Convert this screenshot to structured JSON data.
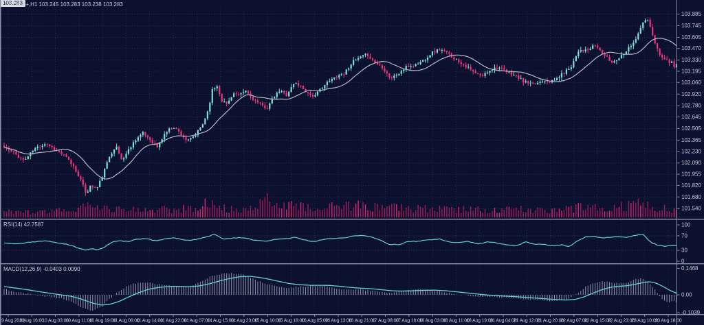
{
  "window": {
    "title": "USDX+,H1 103.245 103.283 103.238 103.283"
  },
  "icons": {
    "symbol_marker": "▼"
  },
  "colors": {
    "background": "#0D1130",
    "grid": "#272C50",
    "grid_level": "#343A63",
    "bull": "#7DE2D8",
    "bear": "#F2357B",
    "volume": "#9C1C58",
    "volume_bright": "#DE2570",
    "ma_line": "#B7BAC7",
    "indicator_line": "#5FD4D4",
    "histogram": "#B9BDCC",
    "axis_text": "#C6CAD8",
    "separator": "#8D93A9",
    "price_tag_bg": "#DCE0EA",
    "price_tag_text": "#10142E"
  },
  "panels": {
    "rsi": {
      "label": "RSI(14) 42.7587",
      "scale_labels": [
        "100",
        "70",
        "30",
        "0"
      ]
    },
    "macd": {
      "label": "MACD(12,26,9) -0.0403 0.0090",
      "scale_labels": [
        "0.1468",
        "0.00",
        "-0.1039"
      ]
    }
  },
  "price_axis": {
    "ticks": [
      "103.885",
      "103.745",
      "103.605",
      "103.470",
      "103.330",
      "103.195",
      "103.060",
      "102.920",
      "102.780",
      "102.645",
      "102.505",
      "102.365",
      "102.230",
      "102.090",
      "101.955",
      "101.820",
      "101.680",
      "101.540"
    ],
    "current_price": "103.283"
  },
  "time_axis": {
    "labels": [
      "9 Aug 2023",
      "9 Aug 16:00",
      "10 Aug 03:00",
      "10 Aug 11:00",
      "10 Aug 19:00",
      "11 Aug 06:00",
      "11 Aug 14:00",
      "11 Aug 22:00",
      "14 Aug 07:00",
      "14 Aug 15:00",
      "14 Aug 23:00",
      "15 Aug 10:00",
      "15 Aug 18:00",
      "16 Aug 05:00",
      "16 Aug 13:00",
      "16 Aug 21:00",
      "17 Aug 08:00",
      "17 Aug 16:00",
      "18 Aug 03:00",
      "18 Aug 11:00",
      "18 Aug 19:00",
      "21 Aug 04:00",
      "21 Aug 12:00",
      "21 Aug 20:00",
      "22 Aug 07:00",
      "22 Aug 15:00",
      "22 Aug 23:00",
      "23 Aug 10:00",
      "23 Aug 18:00"
    ]
  },
  "chart_data": {
    "type": "candlestick",
    "symbol": "USDX+",
    "timeframe": "H1",
    "title": "USDX+,H1",
    "last": {
      "open": 103.245,
      "high": 103.283,
      "low": 103.238,
      "close": 103.283
    },
    "ylim": [
      101.54,
      103.885
    ],
    "ma_period": 16,
    "candles_count": 282,
    "render_seed": 11,
    "price_path": [
      [
        0.0,
        102.28
      ],
      [
        0.012,
        102.22
      ],
      [
        0.03,
        102.12
      ],
      [
        0.045,
        102.26
      ],
      [
        0.062,
        102.33
      ],
      [
        0.078,
        102.24
      ],
      [
        0.092,
        102.16
      ],
      [
        0.103,
        102.05
      ],
      [
        0.112,
        101.92
      ],
      [
        0.122,
        101.72
      ],
      [
        0.129,
        101.82
      ],
      [
        0.138,
        101.78
      ],
      [
        0.147,
        101.95
      ],
      [
        0.157,
        102.18
      ],
      [
        0.166,
        102.3
      ],
      [
        0.175,
        102.12
      ],
      [
        0.186,
        102.26
      ],
      [
        0.196,
        102.38
      ],
      [
        0.207,
        102.45
      ],
      [
        0.216,
        102.38
      ],
      [
        0.228,
        102.28
      ],
      [
        0.24,
        102.46
      ],
      [
        0.252,
        102.53
      ],
      [
        0.263,
        102.44
      ],
      [
        0.273,
        102.35
      ],
      [
        0.284,
        102.42
      ],
      [
        0.295,
        102.55
      ],
      [
        0.303,
        102.72
      ],
      [
        0.31,
        102.98
      ],
      [
        0.317,
        103.02
      ],
      [
        0.324,
        102.84
      ],
      [
        0.332,
        102.8
      ],
      [
        0.34,
        102.93
      ],
      [
        0.35,
        102.9
      ],
      [
        0.359,
        102.96
      ],
      [
        0.369,
        102.87
      ],
      [
        0.379,
        102.8
      ],
      [
        0.391,
        102.75
      ],
      [
        0.4,
        102.87
      ],
      [
        0.41,
        102.96
      ],
      [
        0.42,
        102.91
      ],
      [
        0.432,
        103.06
      ],
      [
        0.442,
        103.01
      ],
      [
        0.452,
        102.93
      ],
      [
        0.462,
        102.89
      ],
      [
        0.472,
        103.0
      ],
      [
        0.483,
        103.07
      ],
      [
        0.495,
        103.14
      ],
      [
        0.506,
        103.17
      ],
      [
        0.517,
        103.3
      ],
      [
        0.53,
        103.36
      ],
      [
        0.54,
        103.4
      ],
      [
        0.551,
        103.3
      ],
      [
        0.562,
        103.25
      ],
      [
        0.575,
        103.11
      ],
      [
        0.587,
        103.17
      ],
      [
        0.599,
        103.25
      ],
      [
        0.611,
        103.27
      ],
      [
        0.624,
        103.33
      ],
      [
        0.636,
        103.42
      ],
      [
        0.648,
        103.46
      ],
      [
        0.66,
        103.41
      ],
      [
        0.673,
        103.33
      ],
      [
        0.685,
        103.27
      ],
      [
        0.697,
        103.19
      ],
      [
        0.71,
        103.13
      ],
      [
        0.722,
        103.21
      ],
      [
        0.734,
        103.25
      ],
      [
        0.746,
        103.19
      ],
      [
        0.759,
        103.15
      ],
      [
        0.773,
        103.07
      ],
      [
        0.787,
        103.03
      ],
      [
        0.802,
        103.09
      ],
      [
        0.816,
        103.07
      ],
      [
        0.83,
        103.16
      ],
      [
        0.843,
        103.25
      ],
      [
        0.855,
        103.46
      ],
      [
        0.867,
        103.44
      ],
      [
        0.879,
        103.51
      ],
      [
        0.892,
        103.39
      ],
      [
        0.904,
        103.3
      ],
      [
        0.916,
        103.37
      ],
      [
        0.928,
        103.47
      ],
      [
        0.941,
        103.6
      ],
      [
        0.95,
        103.78
      ],
      [
        0.957,
        103.83
      ],
      [
        0.965,
        103.6
      ],
      [
        0.973,
        103.43
      ],
      [
        0.982,
        103.34
      ],
      [
        0.992,
        103.3
      ],
      [
        1.0,
        103.283
      ]
    ],
    "volume_profile": [
      [
        0.0,
        8
      ],
      [
        0.05,
        7
      ],
      [
        0.09,
        10
      ],
      [
        0.12,
        16
      ],
      [
        0.15,
        13
      ],
      [
        0.2,
        10
      ],
      [
        0.24,
        12
      ],
      [
        0.28,
        13
      ],
      [
        0.3,
        20
      ],
      [
        0.33,
        13
      ],
      [
        0.36,
        10
      ],
      [
        0.39,
        24
      ],
      [
        0.41,
        27
      ],
      [
        0.43,
        17
      ],
      [
        0.46,
        12
      ],
      [
        0.5,
        16
      ],
      [
        0.53,
        17
      ],
      [
        0.56,
        13
      ],
      [
        0.6,
        15
      ],
      [
        0.63,
        13
      ],
      [
        0.66,
        11
      ],
      [
        0.7,
        12
      ],
      [
        0.73,
        10
      ],
      [
        0.76,
        12
      ],
      [
        0.8,
        10
      ],
      [
        0.83,
        12
      ],
      [
        0.86,
        15
      ],
      [
        0.9,
        12
      ],
      [
        0.93,
        17
      ],
      [
        0.95,
        20
      ],
      [
        0.97,
        15
      ],
      [
        1.0,
        9
      ]
    ],
    "rsi": {
      "period": 14,
      "current": 42.7587,
      "levels": [
        70,
        30
      ],
      "range": [
        0,
        100
      ],
      "path": [
        [
          0.0,
          50
        ],
        [
          0.02,
          47
        ],
        [
          0.04,
          53
        ],
        [
          0.065,
          56
        ],
        [
          0.085,
          49
        ],
        [
          0.1,
          44
        ],
        [
          0.112,
          35
        ],
        [
          0.122,
          30
        ],
        [
          0.13,
          34
        ],
        [
          0.14,
          31
        ],
        [
          0.15,
          40
        ],
        [
          0.16,
          52
        ],
        [
          0.17,
          57
        ],
        [
          0.184,
          54
        ],
        [
          0.196,
          60
        ],
        [
          0.21,
          62
        ],
        [
          0.227,
          56
        ],
        [
          0.24,
          62
        ],
        [
          0.252,
          65
        ],
        [
          0.265,
          59
        ],
        [
          0.275,
          57
        ],
        [
          0.29,
          62
        ],
        [
          0.303,
          68
        ],
        [
          0.313,
          75
        ],
        [
          0.325,
          61
        ],
        [
          0.34,
          64
        ],
        [
          0.355,
          65
        ],
        [
          0.37,
          59
        ],
        [
          0.39,
          54
        ],
        [
          0.4,
          60
        ],
        [
          0.42,
          62
        ],
        [
          0.432,
          66
        ],
        [
          0.445,
          59
        ],
        [
          0.46,
          54
        ],
        [
          0.475,
          60
        ],
        [
          0.49,
          63
        ],
        [
          0.505,
          64
        ],
        [
          0.52,
          70
        ],
        [
          0.532,
          71
        ],
        [
          0.545,
          67
        ],
        [
          0.558,
          60
        ],
        [
          0.572,
          47
        ],
        [
          0.587,
          45
        ],
        [
          0.6,
          54
        ],
        [
          0.615,
          55
        ],
        [
          0.63,
          59
        ],
        [
          0.648,
          61
        ],
        [
          0.66,
          54
        ],
        [
          0.675,
          51
        ],
        [
          0.69,
          55
        ],
        [
          0.705,
          47
        ],
        [
          0.72,
          53
        ],
        [
          0.735,
          50
        ],
        [
          0.75,
          44
        ],
        [
          0.762,
          42
        ],
        [
          0.775,
          53
        ],
        [
          0.79,
          47
        ],
        [
          0.805,
          46
        ],
        [
          0.818,
          42
        ],
        [
          0.83,
          46
        ],
        [
          0.84,
          40
        ],
        [
          0.852,
          56
        ],
        [
          0.865,
          67
        ],
        [
          0.878,
          68
        ],
        [
          0.89,
          64
        ],
        [
          0.903,
          66
        ],
        [
          0.916,
          67
        ],
        [
          0.928,
          66
        ],
        [
          0.94,
          72
        ],
        [
          0.95,
          74
        ],
        [
          0.962,
          52
        ],
        [
          0.972,
          44
        ],
        [
          0.982,
          41
        ],
        [
          0.992,
          43
        ],
        [
          1.0,
          42.76
        ]
      ]
    },
    "macd": {
      "fast": 12,
      "slow": 26,
      "signal": 9,
      "current_main": -0.0403,
      "current_signal": 0.009,
      "range": [
        -0.1039,
        0.1468
      ],
      "signal_path": [
        [
          0.0,
          0.046
        ],
        [
          0.03,
          0.031
        ],
        [
          0.06,
          0.013
        ],
        [
          0.085,
          0.0
        ],
        [
          0.1,
          -0.008
        ],
        [
          0.115,
          -0.024
        ],
        [
          0.13,
          -0.044
        ],
        [
          0.145,
          -0.057
        ],
        [
          0.158,
          -0.052
        ],
        [
          0.172,
          -0.035
        ],
        [
          0.185,
          -0.012
        ],
        [
          0.2,
          0.012
        ],
        [
          0.215,
          0.031
        ],
        [
          0.23,
          0.041
        ],
        [
          0.245,
          0.046
        ],
        [
          0.26,
          0.047
        ],
        [
          0.275,
          0.045
        ],
        [
          0.29,
          0.049
        ],
        [
          0.305,
          0.061
        ],
        [
          0.32,
          0.077
        ],
        [
          0.335,
          0.09
        ],
        [
          0.35,
          0.1
        ],
        [
          0.365,
          0.103
        ],
        [
          0.38,
          0.096
        ],
        [
          0.395,
          0.086
        ],
        [
          0.41,
          0.073
        ],
        [
          0.425,
          0.062
        ],
        [
          0.44,
          0.056
        ],
        [
          0.455,
          0.053
        ],
        [
          0.47,
          0.053
        ],
        [
          0.485,
          0.052
        ],
        [
          0.5,
          0.047
        ],
        [
          0.515,
          0.041
        ],
        [
          0.53,
          0.037
        ],
        [
          0.545,
          0.034
        ],
        [
          0.56,
          0.029
        ],
        [
          0.575,
          0.023
        ],
        [
          0.59,
          0.021
        ],
        [
          0.605,
          0.022
        ],
        [
          0.625,
          0.025
        ],
        [
          0.64,
          0.026
        ],
        [
          0.655,
          0.023
        ],
        [
          0.67,
          0.018
        ],
        [
          0.685,
          0.012
        ],
        [
          0.7,
          0.006
        ],
        [
          0.715,
          0.0
        ],
        [
          0.73,
          -0.004
        ],
        [
          0.745,
          -0.007
        ],
        [
          0.76,
          -0.01
        ],
        [
          0.775,
          -0.014
        ],
        [
          0.79,
          -0.018
        ],
        [
          0.805,
          -0.022
        ],
        [
          0.82,
          -0.026
        ],
        [
          0.835,
          -0.029
        ],
        [
          0.85,
          -0.025
        ],
        [
          0.862,
          -0.012
        ],
        [
          0.875,
          0.008
        ],
        [
          0.888,
          0.027
        ],
        [
          0.9,
          0.04
        ],
        [
          0.912,
          0.047
        ],
        [
          0.925,
          0.05
        ],
        [
          0.938,
          0.058
        ],
        [
          0.95,
          0.068
        ],
        [
          0.96,
          0.073
        ],
        [
          0.97,
          0.065
        ],
        [
          0.98,
          0.046
        ],
        [
          0.99,
          0.025
        ],
        [
          1.0,
          0.009
        ]
      ]
    }
  }
}
